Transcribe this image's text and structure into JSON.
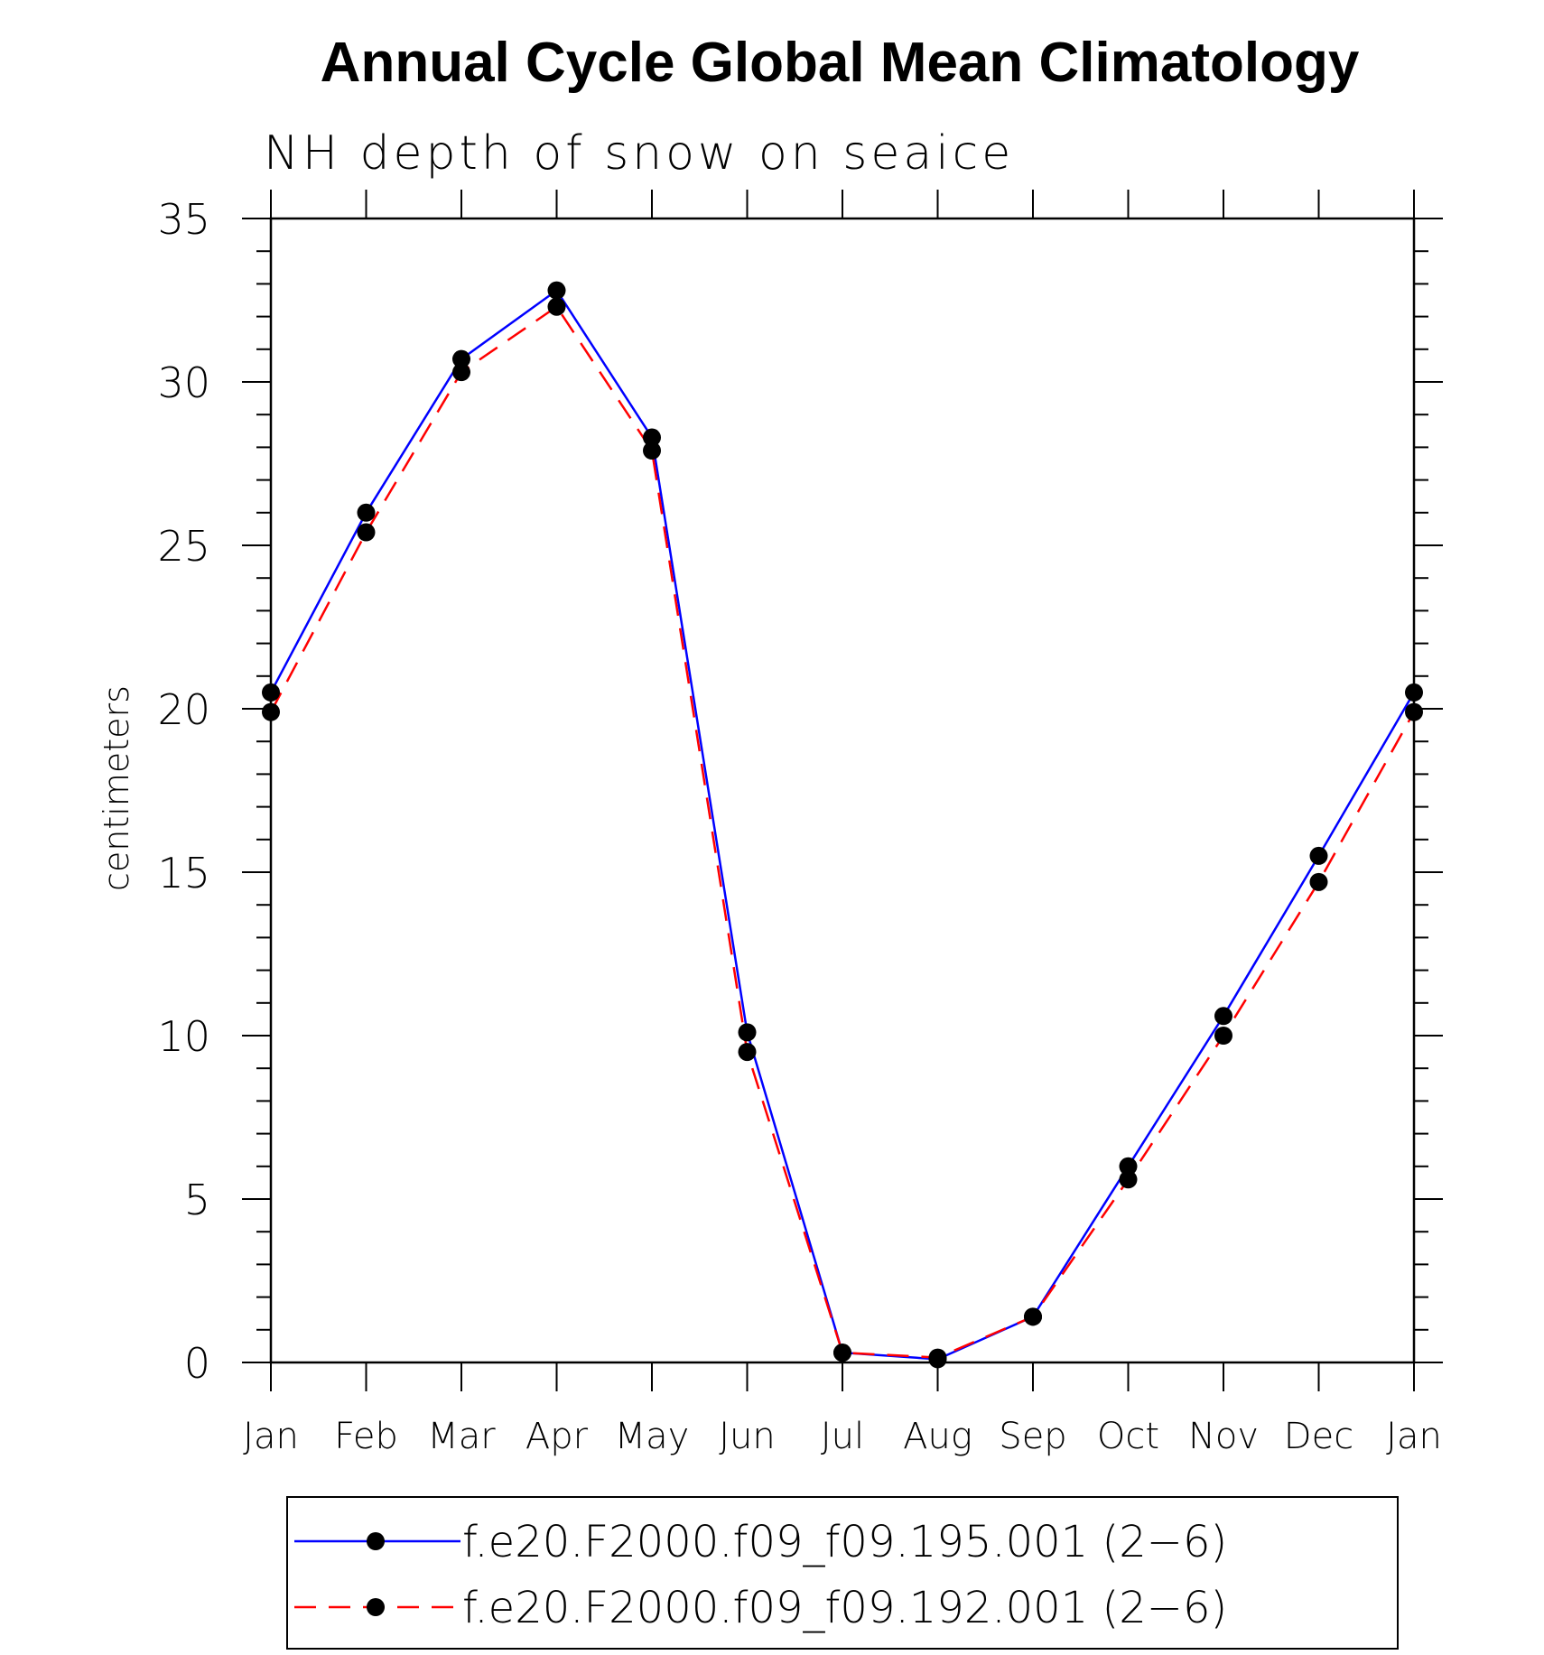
{
  "chart_data": {
    "type": "line",
    "title": "Annual Cycle Global Mean Climatology",
    "subtitle": "NH depth of snow on seaice",
    "ylabel": "centimeters",
    "xlabel": "",
    "ylim": [
      0,
      35
    ],
    "y_major_ticks": [
      0,
      5,
      10,
      15,
      20,
      25,
      30,
      35
    ],
    "y_minor_step": 1,
    "categories": [
      "Jan",
      "Feb",
      "Mar",
      "Apr",
      "May",
      "Jun",
      "Jul",
      "Aug",
      "Sep",
      "Oct",
      "Nov",
      "Dec",
      "Jan"
    ],
    "grid": false,
    "legend_position": "bottom-center",
    "series": [
      {
        "name": "f.e20.F2000.f09_f09.195.001 (2−6)",
        "color": "#0000ff",
        "line_style": "solid",
        "marker": "filled-circle",
        "values": [
          20.5,
          26.0,
          30.7,
          32.8,
          28.3,
          10.1,
          0.3,
          0.1,
          1.4,
          6.0,
          10.6,
          15.5,
          20.5
        ]
      },
      {
        "name": "f.e20.F2000.f09_f09.192.001 (2−6)",
        "color": "#ff0000",
        "line_style": "dashed",
        "marker": "filled-circle",
        "values": [
          19.9,
          25.4,
          30.3,
          32.3,
          27.9,
          9.5,
          0.3,
          0.15,
          1.4,
          5.6,
          10.0,
          14.7,
          19.9
        ]
      }
    ]
  }
}
